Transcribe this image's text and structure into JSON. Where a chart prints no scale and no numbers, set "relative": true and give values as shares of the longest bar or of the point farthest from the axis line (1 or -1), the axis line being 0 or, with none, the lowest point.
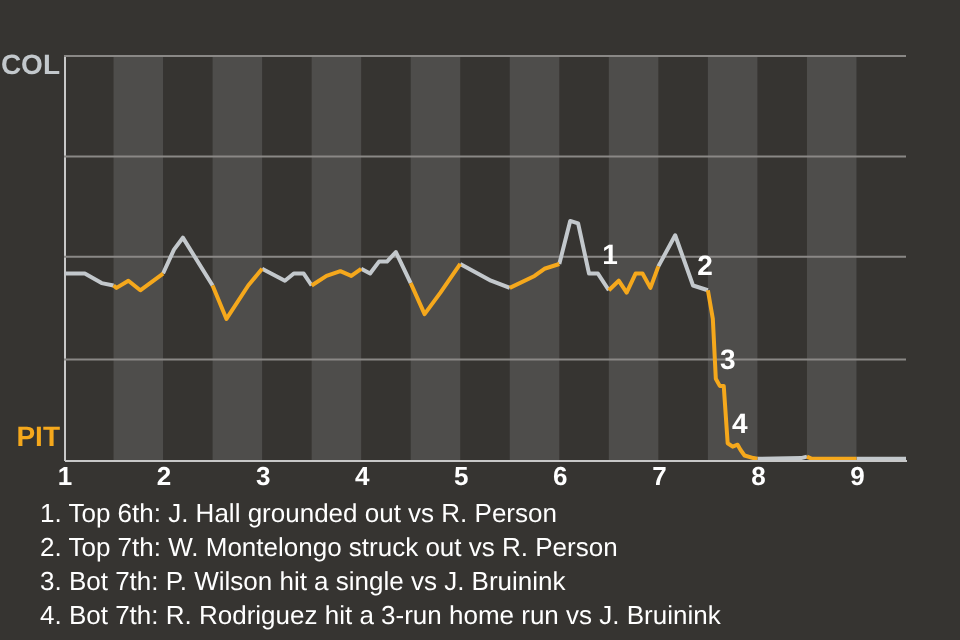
{
  "chart_data": {
    "type": "line",
    "relative": true,
    "x": [
      1.01,
      1.21,
      1.38,
      1.5,
      1.53,
      1.65,
      1.77,
      2.0,
      2.11,
      2.2,
      2.5,
      2.64,
      2.86,
      3.0,
      3.23,
      3.32,
      3.42,
      3.5,
      3.65,
      3.79,
      3.9,
      4.0,
      4.09,
      4.18,
      4.26,
      4.35,
      4.5,
      4.64,
      4.8,
      5.0,
      5.31,
      5.5,
      5.75,
      5.85,
      6.0,
      6.11,
      6.19,
      6.3,
      6.39,
      6.5,
      6.6,
      6.68,
      6.77,
      6.84,
      6.92,
      7.0,
      7.17,
      7.35,
      7.5,
      7.55,
      7.58,
      7.62,
      7.66,
      7.7,
      7.75,
      7.8,
      7.83,
      7.87,
      7.96,
      8.0,
      8.44,
      8.5,
      8.55,
      9.0,
      9.5
    ],
    "series": [
      {
        "color": "#c3c8cc",
        "values": [
          0.78,
          0.78,
          0.74,
          0.73,
          null,
          null,
          null,
          0.78,
          0.88,
          0.93,
          0.73,
          null,
          null,
          0.8,
          0.75,
          0.78,
          0.78,
          0.73,
          null,
          null,
          null,
          0.8,
          0.78,
          0.83,
          0.83,
          0.87,
          0.74,
          null,
          null,
          0.82,
          0.75,
          0.72,
          null,
          null,
          0.82,
          1,
          0.99,
          0.78,
          0.78,
          0.71,
          null,
          null,
          null,
          null,
          null,
          0.81,
          0.94,
          0.73,
          0.71,
          null,
          null,
          null,
          null,
          null,
          null,
          null,
          null,
          null,
          null,
          0.005,
          0.008,
          0.014,
          null,
          0.005,
          0.005
        ]
      },
      {
        "color": "#f5a81c",
        "values": [
          null,
          null,
          null,
          0.73,
          0.72,
          0.75,
          0.71,
          0.78,
          null,
          null,
          0.73,
          0.59,
          0.73,
          0.8,
          null,
          null,
          null,
          0.73,
          0.77,
          0.79,
          0.77,
          0.8,
          null,
          null,
          null,
          null,
          0.74,
          0.61,
          0.7,
          0.82,
          null,
          0.72,
          0.77,
          0.8,
          0.82,
          null,
          null,
          null,
          null,
          0.71,
          0.75,
          0.7,
          0.78,
          0.78,
          0.72,
          0.81,
          null,
          null,
          0.71,
          0.59,
          0.34,
          0.31,
          0.31,
          0.07,
          0.056,
          0.064,
          0.042,
          0.019,
          0.008,
          0.005,
          null,
          0.014,
          0.005,
          0.005,
          null
        ]
      }
    ],
    "xlim": [
      1,
      9.5
    ],
    "xticks": [
      1,
      2,
      3,
      4,
      5,
      6,
      7,
      8,
      9
    ],
    "ref_lines": [
      {
        "axis": "y",
        "value": 0.42,
        "color": "#8a8886"
      },
      {
        "axis": "y",
        "value": 0.85,
        "color": "#8a8886"
      },
      {
        "axis": "y",
        "value": 1.27,
        "color": "#8a8886"
      },
      {
        "axis": "y",
        "value": 1.69,
        "color": "#8a8886"
      }
    ],
    "bands": [
      {
        "axis": "x",
        "from": 1.5,
        "to": 2,
        "color": "#4e4d4b"
      },
      {
        "axis": "x",
        "from": 2.5,
        "to": 3,
        "color": "#4e4d4b"
      },
      {
        "axis": "x",
        "from": 3.5,
        "to": 4,
        "color": "#4e4d4b"
      },
      {
        "axis": "x",
        "from": 4.5,
        "to": 5,
        "color": "#4e4d4b"
      },
      {
        "axis": "x",
        "from": 5.5,
        "to": 6,
        "color": "#4e4d4b"
      },
      {
        "axis": "x",
        "from": 6.5,
        "to": 7,
        "color": "#4e4d4b"
      },
      {
        "axis": "x",
        "from": 7.5,
        "to": 8,
        "color": "#4e4d4b"
      },
      {
        "axis": "x",
        "from": 8.5,
        "to": 9,
        "color": "#4e4d4b"
      }
    ],
    "annotations": [
      {
        "text": "1",
        "x": 6.39,
        "y": 0.78
      },
      {
        "text": "2",
        "x": 7.35,
        "y": 0.73
      },
      {
        "text": "3",
        "x": 7.58,
        "y": 0.34
      },
      {
        "text": "4",
        "x": 7.7,
        "y": 0.07
      },
      "COL",
      "PIT",
      "1. Top 6th: J. Hall grounded out vs R. Person",
      "2. Top 7th: W. Montelongo struck out vs R. Person",
      "3. Bot 7th: P. Wilson hit a single vs J. Bruinink",
      "4. Bot 7th: R. Rodriguez hit a 3-run home run vs J. Bruinink"
    ]
  }
}
